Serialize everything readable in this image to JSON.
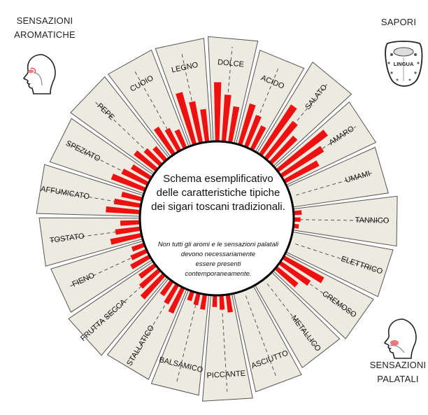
{
  "corner_labels": {
    "aromatic_title": [
      "SENSAZIONI",
      "AROMATICHE"
    ],
    "tastes_title": "SAPORI",
    "palatal_title": [
      "SENSAZIONI",
      "PALATALI"
    ],
    "tongue_label": "LINGUA"
  },
  "center": {
    "title_lines": [
      "Schema esemplificativo",
      "delle caratteristiche tipiche",
      "dei sigari toscani tradizionali."
    ],
    "note_lines": [
      "Non tutti gli aromi e le sensazioni palatali",
      "devono necessariamente",
      "essere presenti",
      "contemporaneamente."
    ]
  },
  "icons": {
    "aromatic": "nose-head-profile-icon",
    "tastes": "tongue-icon",
    "palatal": "mouth-head-profile-icon"
  },
  "colors": {
    "sector_fill": "#edeae0",
    "sector_stroke": "#555555",
    "bar": "#ee1111",
    "center_fill": "#ffffff"
  },
  "chart_data": {
    "type": "radial-bar",
    "sectors": [
      {
        "label": "DOLCE",
        "values": [
          0.86,
          0.68,
          0.52
        ]
      },
      {
        "label": "ACIDO",
        "values": [
          0.7,
          0.55,
          0.42
        ]
      },
      {
        "label": "SALATO",
        "values": [
          0.84,
          0.66,
          0.5
        ]
      },
      {
        "label": "AMARO",
        "values": [
          0.98,
          0.78,
          0.6
        ]
      },
      {
        "label": "UMAMI",
        "values": []
      },
      {
        "label": "TANNICO",
        "values": [
          0.1,
          0.08,
          0.06
        ]
      },
      {
        "label": "ELETTRICO",
        "values": []
      },
      {
        "label": "CREMOSO",
        "values": [
          0.72,
          0.56,
          0.42
        ]
      },
      {
        "label": "METALLICO",
        "values": []
      },
      {
        "label": "ASCIUTTO",
        "values": []
      },
      {
        "label": "PICCANTE",
        "values": [
          0.24,
          0.19,
          0.15
        ]
      },
      {
        "label": "BALSAMICO",
        "values": [
          0.22,
          0.17,
          0.13
        ]
      },
      {
        "label": "STALLATICO",
        "values": [
          0.44,
          0.34,
          0.26
        ]
      },
      {
        "label": "FRUTTA SECCA",
        "values": [
          0.47,
          0.37,
          0.28
        ]
      },
      {
        "label": "FIENO",
        "values": [
          0.34,
          0.27,
          0.2
        ]
      },
      {
        "label": "TOSTATO",
        "values": [
          0.48,
          0.38,
          0.29
        ]
      },
      {
        "label": "AFFUMICATO",
        "values": [
          0.5,
          0.39,
          0.3
        ]
      },
      {
        "label": "SPEZIATO",
        "values": [
          0.56,
          0.44,
          0.34
        ]
      },
      {
        "label": "PEPE",
        "values": [
          0.4,
          0.31,
          0.24
        ]
      },
      {
        "label": "CUOIO",
        "values": [
          0.46,
          0.36,
          0.28
        ]
      },
      {
        "label": "LEGNO",
        "values": [
          0.8,
          0.62,
          0.48
        ]
      }
    ]
  }
}
